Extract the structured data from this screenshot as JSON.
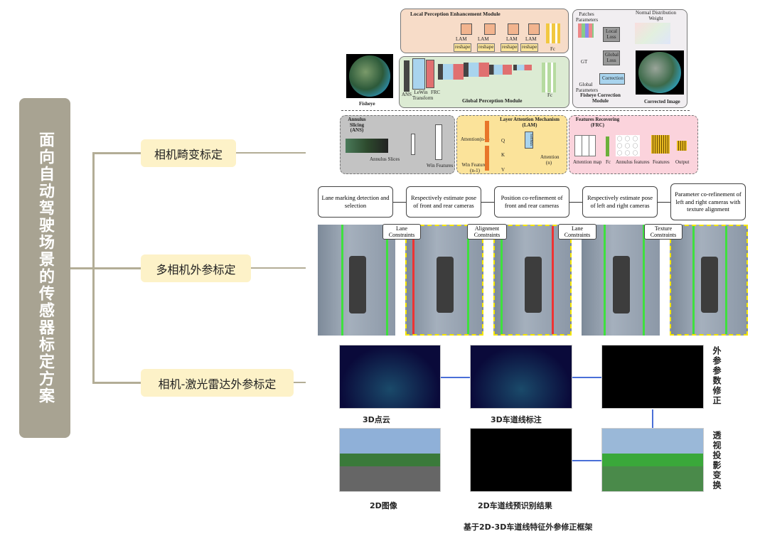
{
  "root_title": "面向自动驾驶场景的传感器标定方案",
  "branches": [
    {
      "label": "相机畸变标定"
    },
    {
      "label": "多相机外参标定"
    },
    {
      "label": "相机-激光雷达外参标定"
    }
  ],
  "fisheye": {
    "local_module": "Local  Perception Enhancement Module",
    "global_module": "Global  Perception Module",
    "correction_module": "Fisheye  Correction Module",
    "lam": "LAM",
    "reshape": "reshape",
    "fc": "Fc",
    "ans": "ANS",
    "lewin": "LeWin Transform",
    "frc": "FRC",
    "fisheye": "Fisheye",
    "corrected": "Corrected Image",
    "patches": "Patches Parameters",
    "normal": "Normal Distribution Weight",
    "local_loss": "Local Loss",
    "global_loss": "Global Loss",
    "gt": "GT",
    "global_params": "Global Parameters",
    "correction": "Correction",
    "ans_title": "Annulus Slicing (ANS)",
    "annulus_slices": "Annulus Slices",
    "win_features": "Win Features",
    "lam_title": "Layer Attention Mechanism (LAM)",
    "attention_prev": "Attention(n-1)",
    "win_prev": "Win Features (n-1)",
    "q": "Q",
    "k": "K",
    "v": "V",
    "softmax": "SoftMax",
    "attention_n": "Attention (n)",
    "frc_title": "Features Recovering (FRC)",
    "attention_map": "Attention map",
    "annulus_features": "Annulus features",
    "features": "Features",
    "output": "Output"
  },
  "flow_steps": [
    "Lane marking detection and selection",
    "Respectively estimate pose of front and rear cameras",
    "Position co-refinement of front and rear cameras",
    "Respectively estimate pose of left and right cameras",
    "Parameter co-refinement of left and right cameras with texture alignment"
  ],
  "constraints": [
    "Lane Constraints",
    "Alignment Constraints",
    "Lane Constraints",
    "Texture Constraints"
  ],
  "lidar": {
    "pointcloud": "3D点云",
    "lane_label_3d": "3D车道线标注",
    "image_2d": "2D图像",
    "lane_pred_2d": "2D车道线预识别结果",
    "extrinsic_fix": "外参参数修正",
    "projection": "透视投影变换",
    "caption": "基于2D-3D车道线特征外参修正框架"
  },
  "colors": {
    "root": "#a8a392",
    "branch": "#fdf2c8",
    "tree_line": "#b3ad96",
    "lane_green": "#3ee03e",
    "constraint_yellow": "#f5e600",
    "arrow_blue": "#4a6fd8"
  }
}
